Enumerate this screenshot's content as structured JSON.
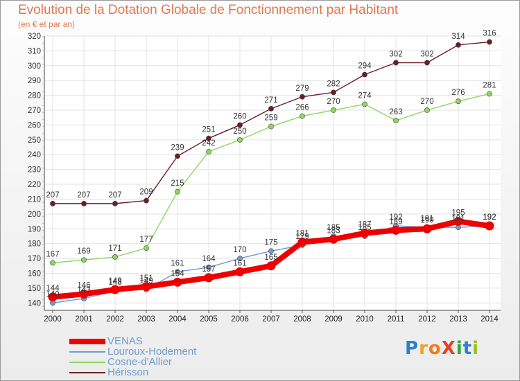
{
  "chart_data": {
    "type": "line",
    "title": "Evolution de la Dotation Globale de Fonctionnement par Habitant",
    "subtitle": "(en € et par an)",
    "xlabel": "",
    "ylabel": "",
    "ylim": [
      135,
      320
    ],
    "yticks": [
      140,
      150,
      160,
      170,
      180,
      190,
      200,
      210,
      220,
      230,
      240,
      250,
      260,
      270,
      280,
      290,
      300,
      310,
      320
    ],
    "grid": true,
    "legend_position": "bottom-left",
    "categories": [
      "2000",
      "2001",
      "2002",
      "2003",
      "2004",
      "2005",
      "2006",
      "2007",
      "2008",
      "2009",
      "2010",
      "2011",
      "2012",
      "2013",
      "2014"
    ],
    "series": [
      {
        "name": "Hérisson",
        "color": "#6b1e25",
        "values": [
          207,
          207,
          207,
          209,
          239,
          251,
          260,
          271,
          279,
          282,
          294,
          302,
          302,
          314,
          316
        ]
      },
      {
        "name": "Cosne-d'Allier",
        "color": "#8fd660",
        "values": [
          167,
          169,
          171,
          177,
          215,
          242,
          250,
          259,
          266,
          270,
          274,
          263,
          270,
          276,
          281
        ]
      },
      {
        "name": "Louroux-Hodement",
        "color": "#6e9cd0",
        "values": [
          140,
          143,
          148,
          149,
          161,
          164,
          170,
          175,
          179,
          185,
          185,
          192,
          191,
          191,
          192
        ]
      },
      {
        "name": "VENAS",
        "color": "#ee0000",
        "values": [
          144,
          146,
          149,
          151,
          154,
          157,
          161,
          165,
          181,
          183,
          187,
          189,
          190,
          195,
          192
        ]
      }
    ]
  },
  "legend": {
    "items": [
      {
        "label": "VENAS",
        "color": "#ee0000"
      },
      {
        "label": "Louroux-Hodement",
        "color": "#6e9cd0"
      },
      {
        "label": "Cosne-d'Allier",
        "color": "#8fd660"
      },
      {
        "label": "Hérisson",
        "color": "#6b1e25"
      }
    ]
  },
  "brand": {
    "logo_text": "ProXiti",
    "letter_colors": [
      "#2e7fd0",
      "#f0a020",
      "#f07a20",
      "#e84020",
      "#2fa83c",
      "#2e7fd0",
      "#9ac020"
    ]
  }
}
